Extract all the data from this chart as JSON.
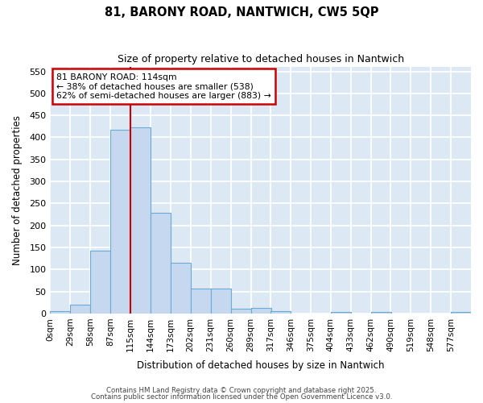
{
  "title1": "81, BARONY ROAD, NANTWICH, CW5 5QP",
  "title2": "Size of property relative to detached houses in Nantwich",
  "xlabel": "Distribution of detached houses by size in Nantwich",
  "ylabel": "Number of detached properties",
  "bin_edges": [
    0,
    29,
    58,
    87,
    115,
    144,
    173,
    202,
    231,
    260,
    289,
    317,
    346,
    375,
    404,
    433,
    462,
    490,
    519,
    548,
    577
  ],
  "bin_labels": [
    "0sqm",
    "29sqm",
    "58sqm",
    "87sqm",
    "115sqm",
    "144sqm",
    "173sqm",
    "202sqm",
    "231sqm",
    "260sqm",
    "289sqm",
    "317sqm",
    "346sqm",
    "375sqm",
    "404sqm",
    "433sqm",
    "462sqm",
    "490sqm",
    "519sqm",
    "548sqm",
    "577sqm"
  ],
  "bar_heights": [
    5,
    20,
    143,
    418,
    422,
    228,
    115,
    57,
    57,
    10,
    13,
    6,
    0,
    0,
    4,
    0,
    3,
    0,
    0,
    0,
    4
  ],
  "bar_color": "#c5d8f0",
  "bar_edge_color": "#6aaad4",
  "vline_x": 115,
  "vline_color": "#cc0000",
  "annotation_title": "81 BARONY ROAD: 114sqm",
  "annotation_line2": "← 38% of detached houses are smaller (538)",
  "annotation_line3": "62% of semi-detached houses are larger (883) →",
  "annotation_box_color": "#cc0000",
  "ylim": [
    0,
    560
  ],
  "yticks": [
    0,
    50,
    100,
    150,
    200,
    250,
    300,
    350,
    400,
    450,
    500,
    550
  ],
  "plot_bg_color": "#dce9f5",
  "fig_bg_color": "#ffffff",
  "grid_color": "#ffffff",
  "footer1": "Contains HM Land Registry data © Crown copyright and database right 2025.",
  "footer2": "Contains public sector information licensed under the Open Government Licence v3.0."
}
